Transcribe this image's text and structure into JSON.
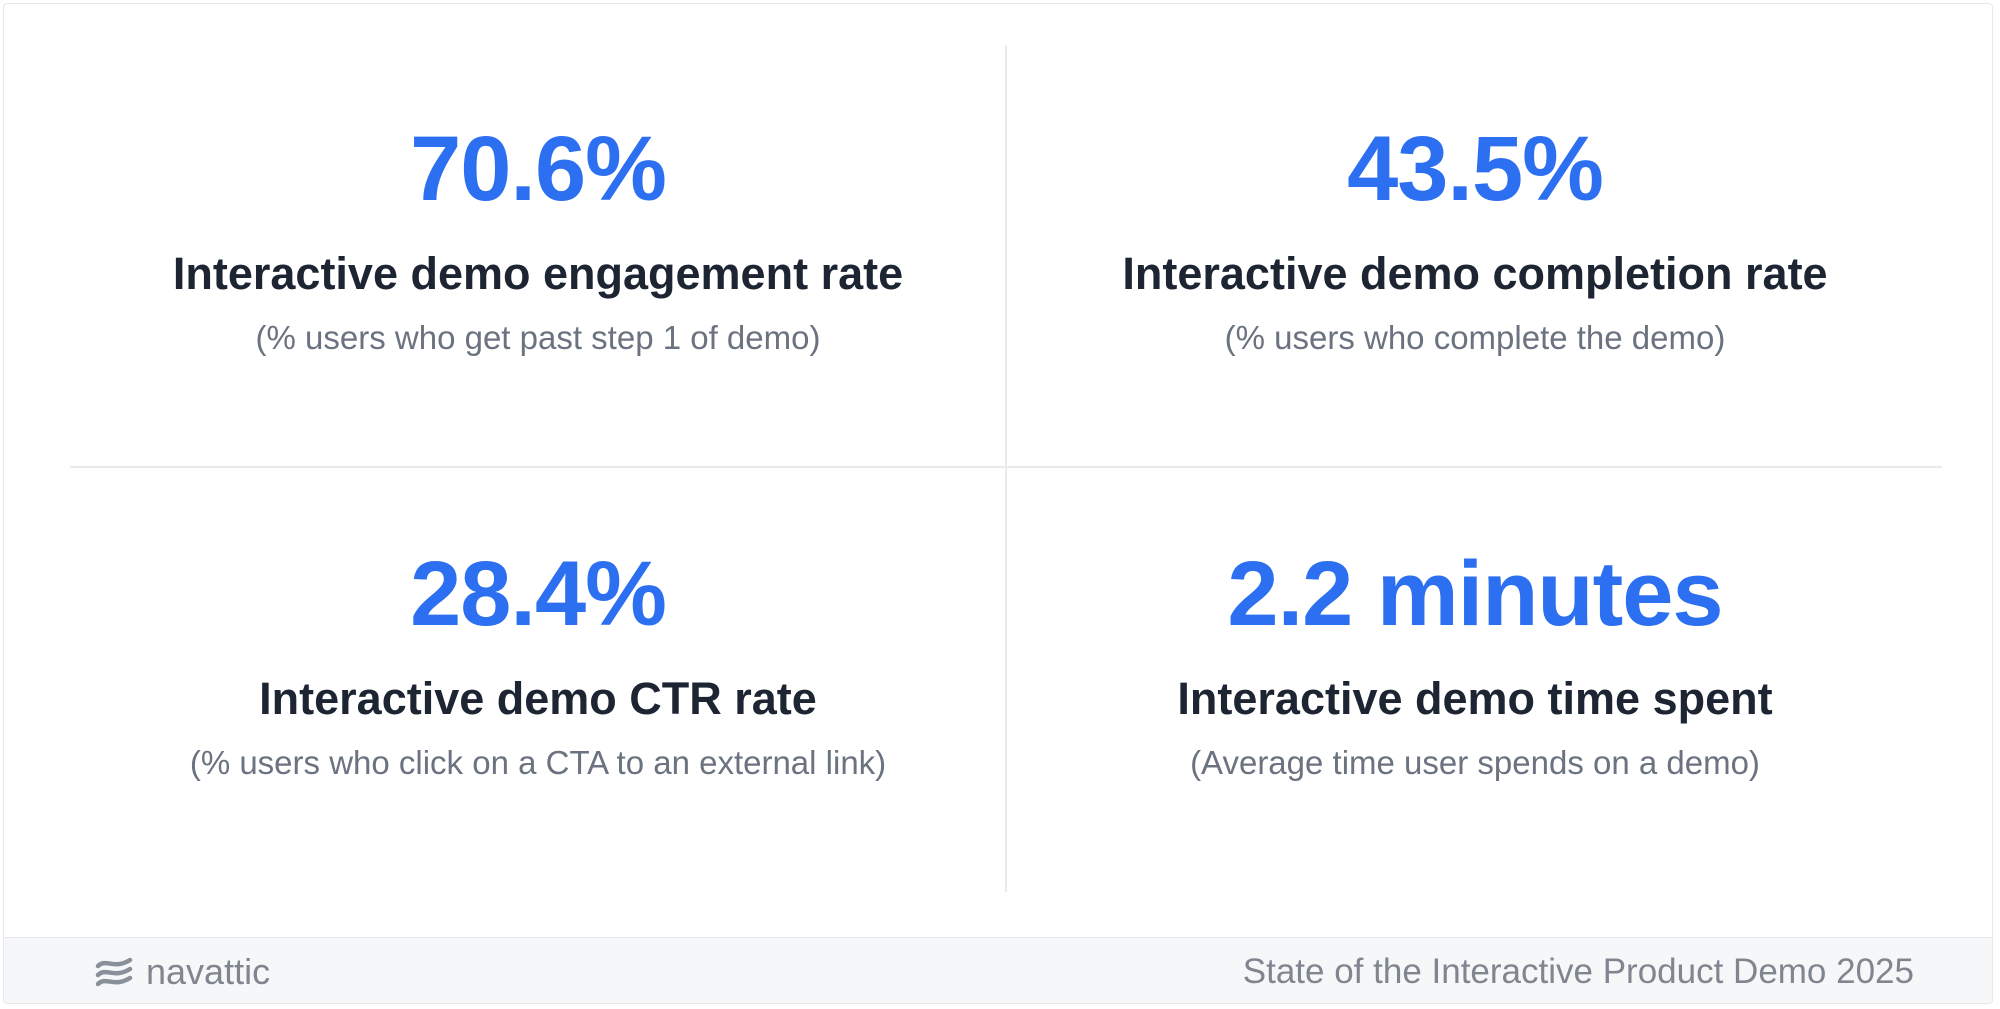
{
  "metrics": [
    {
      "value": "70.6%",
      "label": "Interactive demo engagement rate",
      "description": "(% users who get past step 1 of demo)"
    },
    {
      "value": "43.5%",
      "label": "Interactive demo completion rate",
      "description": "(% users who complete the demo)"
    },
    {
      "value": "28.4%",
      "label": "Interactive demo CTR rate",
      "description": "(% users who click on a CTA to an external link)"
    },
    {
      "value": "2.2 minutes",
      "label": "Interactive demo time spent",
      "description": "(Average time user spends on a demo)"
    }
  ],
  "footer": {
    "brand_icon": "navattic-logo-icon",
    "brand_name": "navattic",
    "report_title": "State of the Interactive Product Demo 2025"
  },
  "colors": {
    "accent": "#2c6ff0",
    "heading": "#1d2533",
    "muted": "#6b7280",
    "footer_bg": "#f6f7f9"
  }
}
